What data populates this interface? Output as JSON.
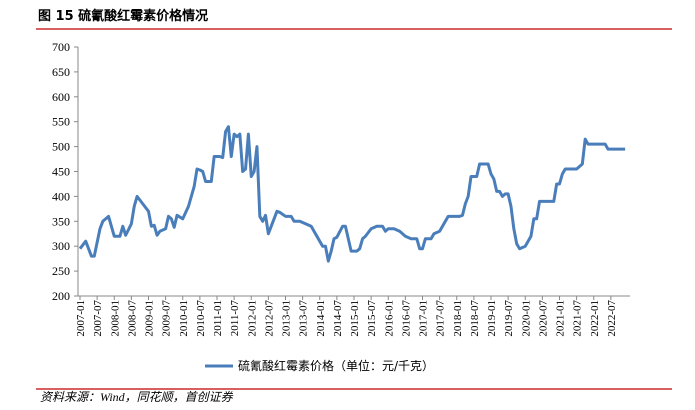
{
  "title": "图 15  硫氰酸红霉素价格情况",
  "source": "资料来源：Wind，同花顺，首创证券",
  "chart_data": {
    "type": "line",
    "legend_position": "bottom",
    "xlim": [
      "2007-01",
      "2023-01"
    ],
    "xticks": [
      "2007-01",
      "2007-07",
      "2008-01",
      "2008-07",
      "2009-01",
      "2009-07",
      "2010-01",
      "2010-07",
      "2011-01",
      "2011-07",
      "2012-01",
      "2012-07",
      "2013-01",
      "2013-07",
      "2014-01",
      "2014-07",
      "2015-01",
      "2015-07",
      "2016-01",
      "2016-07",
      "2017-01",
      "2017-07",
      "2018-01",
      "2018-07",
      "2019-01",
      "2019-07",
      "2020-01",
      "2020-07",
      "2021-01",
      "2021-07",
      "2022-01",
      "2022-07"
    ],
    "ylim": [
      200,
      700
    ],
    "yticks": [
      200,
      250,
      300,
      350,
      400,
      450,
      500,
      550,
      600,
      650,
      700
    ],
    "x": [
      "2007-01",
      "2007-03",
      "2007-05",
      "2007-06",
      "2007-08",
      "2007-09",
      "2007-11",
      "2008-01",
      "2008-03",
      "2008-04",
      "2008-05",
      "2008-07",
      "2008-08",
      "2008-09",
      "2008-11",
      "2009-01",
      "2009-02",
      "2009-03",
      "2009-04",
      "2009-05",
      "2009-07",
      "2009-08",
      "2009-09",
      "2009-10",
      "2009-11",
      "2010-01",
      "2010-03",
      "2010-05",
      "2010-06",
      "2010-07",
      "2010-08",
      "2010-09",
      "2010-11",
      "2010-12",
      "2011-02",
      "2011-03",
      "2011-04",
      "2011-05",
      "2011-06",
      "2011-07",
      "2011-08",
      "2011-09",
      "2011-10",
      "2011-11",
      "2011-12",
      "2012-01",
      "2012-02",
      "2012-03",
      "2012-04",
      "2012-05",
      "2012-06",
      "2012-07",
      "2012-08",
      "2012-10",
      "2012-11",
      "2013-01",
      "2013-03",
      "2013-04",
      "2013-06",
      "2013-08",
      "2013-10",
      "2013-12",
      "2014-02",
      "2014-03",
      "2014-04",
      "2014-05",
      "2014-06",
      "2014-07",
      "2014-09",
      "2014-10",
      "2014-12",
      "2015-02",
      "2015-03",
      "2015-04",
      "2015-05",
      "2015-07",
      "2015-09",
      "2015-11",
      "2015-12",
      "2016-01",
      "2016-03",
      "2016-05",
      "2016-07",
      "2016-09",
      "2016-11",
      "2016-12",
      "2017-01",
      "2017-02",
      "2017-04",
      "2017-05",
      "2017-07",
      "2017-08",
      "2017-10",
      "2017-12",
      "2018-02",
      "2018-03",
      "2018-04",
      "2018-05",
      "2018-06",
      "2018-08",
      "2018-09",
      "2018-11",
      "2018-12",
      "2019-01",
      "2019-02",
      "2019-03",
      "2019-04",
      "2019-05",
      "2019-06",
      "2019-07",
      "2019-08",
      "2019-09",
      "2019-10",
      "2019-11",
      "2020-01",
      "2020-03",
      "2020-04",
      "2020-05",
      "2020-06",
      "2020-08",
      "2020-10",
      "2020-11",
      "2020-12",
      "2021-01",
      "2021-02",
      "2021-03",
      "2021-05",
      "2021-07",
      "2021-09",
      "2021-10",
      "2021-11",
      "2022-01",
      "2022-03",
      "2022-05",
      "2022-06",
      "2022-09",
      "2022-12"
    ],
    "series": [
      {
        "name": "硫氰酸红霉素价格（单位：元/千克）",
        "color": "#4a7ebb",
        "values": [
          295,
          310,
          280,
          280,
          335,
          350,
          360,
          320,
          320,
          340,
          322,
          345,
          380,
          400,
          385,
          370,
          340,
          342,
          322,
          330,
          335,
          360,
          355,
          338,
          362,
          355,
          380,
          420,
          455,
          453,
          450,
          430,
          430,
          480,
          480,
          478,
          530,
          540,
          480,
          525,
          520,
          525,
          450,
          455,
          525,
          440,
          450,
          500,
          360,
          350,
          362,
          325,
          340,
          370,
          368,
          360,
          360,
          350,
          350,
          345,
          340,
          320,
          300,
          300,
          270,
          290,
          315,
          318,
          340,
          340,
          290,
          290,
          295,
          315,
          320,
          335,
          340,
          340,
          330,
          335,
          335,
          330,
          320,
          315,
          315,
          295,
          295,
          315,
          315,
          325,
          330,
          340,
          360,
          360,
          360,
          362,
          385,
          400,
          440,
          440,
          465,
          465,
          465,
          445,
          435,
          410,
          410,
          400,
          405,
          405,
          380,
          335,
          305,
          295,
          300,
          320,
          355,
          355,
          390,
          390,
          390,
          390,
          425,
          425,
          445,
          455,
          455,
          455,
          465,
          515,
          505,
          505,
          505,
          505,
          495,
          495,
          495
        ]
      }
    ]
  }
}
